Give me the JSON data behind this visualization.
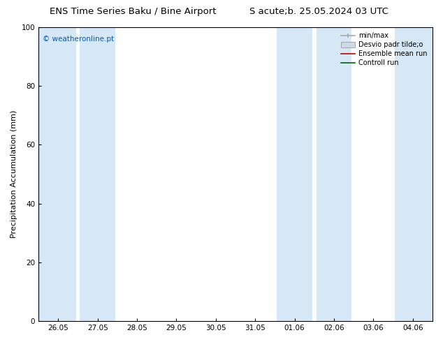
{
  "title_left": "ENS Time Series Baku / Bine Airport",
  "title_right": "S acute;b. 25.05.2024 03 UTC",
  "ylabel": "Precipitation Accumulation (mm)",
  "watermark": "© weatheronline.pt",
  "watermark_color": "#0055cc",
  "ylim": [
    0,
    100
  ],
  "yticks": [
    0,
    20,
    40,
    60,
    80,
    100
  ],
  "xtick_labels": [
    "26.05",
    "27.05",
    "28.05",
    "29.05",
    "30.05",
    "31.05",
    "01.06",
    "02.06",
    "03.06",
    "04.06"
  ],
  "xtick_positions": [
    0,
    1,
    2,
    3,
    4,
    5,
    6,
    7,
    8,
    9
  ],
  "xlim": [
    -0.5,
    9.5
  ],
  "shade_bands": [
    [
      -0.5,
      0.45
    ],
    [
      0.55,
      1.45
    ],
    [
      5.55,
      6.45
    ],
    [
      6.55,
      7.45
    ],
    [
      8.55,
      9.5
    ]
  ],
  "shade_color": "#d6e8f5",
  "background_color": "#ffffff",
  "legend_entries": [
    "min/max",
    "Desvio padr tilde;o",
    "Ensemble mean run",
    "Controll run"
  ],
  "legend_colors_line": [
    "#aaaaaa",
    "#bbccdd",
    "#cc0000",
    "#006600"
  ],
  "title_fontsize": 9.5,
  "axis_fontsize": 8,
  "tick_fontsize": 7.5,
  "watermark_fontsize": 7.5,
  "legend_fontsize": 7
}
